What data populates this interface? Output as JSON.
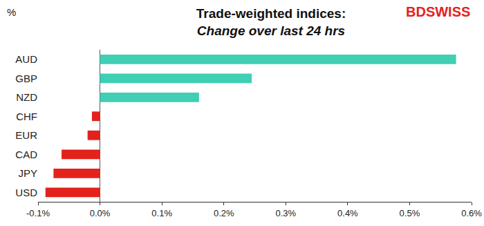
{
  "chart_data": {
    "type": "bar",
    "title": "Trade-weighted indices:",
    "subtitle": "Change over last 24 hrs",
    "xlabel": "%",
    "annotations": [
      "BDSWISS"
    ],
    "orientation": "horizontal",
    "categories": [
      "AUD",
      "GBP",
      "NZD",
      "CHF",
      "EUR",
      "CAD",
      "JPY",
      "USD"
    ],
    "values": [
      0.575,
      0.245,
      0.16,
      -0.013,
      -0.02,
      -0.062,
      -0.075,
      -0.088
    ],
    "colors": [
      "#3fcfb3",
      "#3fcfb3",
      "#3fcfb3",
      "#e3221c",
      "#e3221c",
      "#e3221c",
      "#e3221c",
      "#e3221c"
    ],
    "xlim": [
      -0.1,
      0.6
    ],
    "xticks": [
      {
        "value": -0.1,
        "label": "-0.1%"
      },
      {
        "value": 0,
        "label": "0.0%"
      },
      {
        "value": 0.1,
        "label": "0.1%"
      },
      {
        "value": 0.2,
        "label": "0.2%"
      },
      {
        "value": 0.3,
        "label": "0.3%"
      },
      {
        "value": 0.4,
        "label": "0.4%"
      },
      {
        "value": 0.5,
        "label": "0.5%"
      },
      {
        "value": 0.6,
        "label": "0.6%"
      }
    ],
    "grid": false,
    "data_labels": false
  }
}
